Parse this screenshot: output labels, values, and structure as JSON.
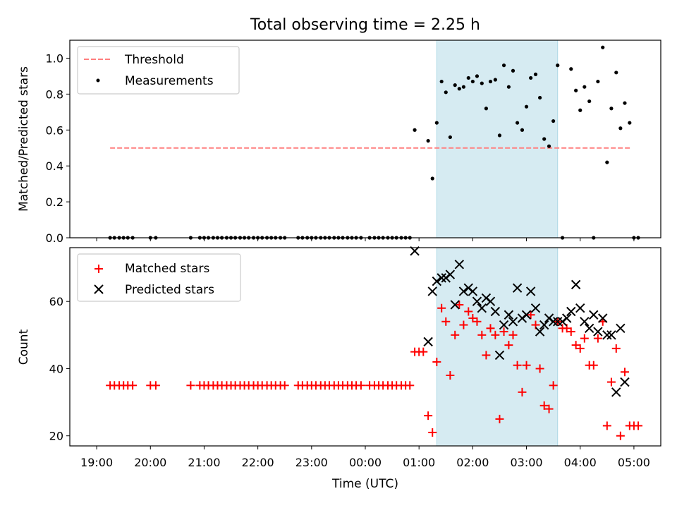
{
  "chart_data": [
    {
      "type": "scatter",
      "title": "Total observing time = 2.25 h",
      "ylabel": "Matched/Predicted stars",
      "xlabel": "",
      "x_unit": "hours since 19:00 UTC",
      "xlim": [
        -0.5,
        10.5
      ],
      "ylim": [
        0,
        1.1
      ],
      "yticks": [
        0.0,
        0.2,
        0.4,
        0.6,
        0.8,
        1.0
      ],
      "ytick_labels": [
        "0.0",
        "0.2",
        "0.4",
        "0.6",
        "0.8",
        "1.0"
      ],
      "legend": {
        "placement": "upper-left",
        "entries": [
          "Threshold",
          "Measurements"
        ]
      },
      "observing_window": [
        6.33,
        8.58
      ],
      "threshold": {
        "name": "Threshold",
        "value": 0.5,
        "x_range": [
          0.25,
          9.96
        ],
        "color": "#ff7f7f"
      },
      "series": [
        {
          "name": "Measurements",
          "color": "#000000",
          "points": [
            [
              0.25,
              0
            ],
            [
              0.33,
              0
            ],
            [
              0.42,
              0
            ],
            [
              0.5,
              0
            ],
            [
              0.58,
              0
            ],
            [
              0.67,
              0
            ],
            [
              1.0,
              0
            ],
            [
              1.1,
              0
            ],
            [
              1.75,
              0
            ],
            [
              1.92,
              0
            ],
            [
              2.0,
              0
            ],
            [
              2.08,
              0
            ],
            [
              2.17,
              0
            ],
            [
              2.25,
              0
            ],
            [
              2.33,
              0
            ],
            [
              2.42,
              0
            ],
            [
              2.5,
              0
            ],
            [
              2.58,
              0
            ],
            [
              2.67,
              0
            ],
            [
              2.75,
              0
            ],
            [
              2.83,
              0
            ],
            [
              2.92,
              0
            ],
            [
              3.0,
              0
            ],
            [
              3.08,
              0
            ],
            [
              3.17,
              0
            ],
            [
              3.25,
              0
            ],
            [
              3.33,
              0
            ],
            [
              3.42,
              0
            ],
            [
              3.5,
              0
            ],
            [
              3.75,
              0
            ],
            [
              3.83,
              0
            ],
            [
              3.92,
              0
            ],
            [
              4.0,
              0
            ],
            [
              4.08,
              0
            ],
            [
              4.17,
              0
            ],
            [
              4.25,
              0
            ],
            [
              4.33,
              0
            ],
            [
              4.42,
              0
            ],
            [
              4.5,
              0
            ],
            [
              4.58,
              0
            ],
            [
              4.67,
              0
            ],
            [
              4.75,
              0
            ],
            [
              4.83,
              0
            ],
            [
              4.92,
              0
            ],
            [
              5.08,
              0
            ],
            [
              5.17,
              0
            ],
            [
              5.25,
              0
            ],
            [
              5.33,
              0
            ],
            [
              5.42,
              0
            ],
            [
              5.5,
              0
            ],
            [
              5.58,
              0
            ],
            [
              5.67,
              0
            ],
            [
              5.75,
              0
            ],
            [
              5.83,
              0
            ],
            [
              5.92,
              0.6
            ],
            [
              6.17,
              0.54
            ],
            [
              6.25,
              0.33
            ],
            [
              6.33,
              0.64
            ],
            [
              6.42,
              0.87
            ],
            [
              6.5,
              0.81
            ],
            [
              6.58,
              0.56
            ],
            [
              6.67,
              0.85
            ],
            [
              6.75,
              0.83
            ],
            [
              6.83,
              0.84
            ],
            [
              6.92,
              0.89
            ],
            [
              7.0,
              0.87
            ],
            [
              7.08,
              0.9
            ],
            [
              7.17,
              0.86
            ],
            [
              7.25,
              0.72
            ],
            [
              7.33,
              0.87
            ],
            [
              7.42,
              0.88
            ],
            [
              7.5,
              0.57
            ],
            [
              7.58,
              0.96
            ],
            [
              7.67,
              0.84
            ],
            [
              7.75,
              0.93
            ],
            [
              7.83,
              0.64
            ],
            [
              7.92,
              0.6
            ],
            [
              8.0,
              0.73
            ],
            [
              8.08,
              0.89
            ],
            [
              8.17,
              0.91
            ],
            [
              8.25,
              0.78
            ],
            [
              8.33,
              0.55
            ],
            [
              8.42,
              0.51
            ],
            [
              8.5,
              0.65
            ],
            [
              8.58,
              0.96
            ],
            [
              8.67,
              0
            ],
            [
              8.83,
              0.94
            ],
            [
              8.92,
              0.82
            ],
            [
              9.0,
              0.71
            ],
            [
              9.08,
              0.84
            ],
            [
              9.17,
              0.76
            ],
            [
              9.25,
              0
            ],
            [
              9.33,
              0.87
            ],
            [
              9.42,
              1.06
            ],
            [
              9.5,
              0.42
            ],
            [
              9.58,
              0.72
            ],
            [
              9.67,
              0.92
            ],
            [
              9.75,
              0.61
            ],
            [
              9.83,
              0.75
            ],
            [
              9.92,
              0.64
            ],
            [
              10.0,
              0
            ],
            [
              10.08,
              0
            ]
          ]
        }
      ]
    },
    {
      "type": "scatter",
      "title": "",
      "ylabel": "Count",
      "xlabel": "Time (UTC)",
      "x_unit": "hours since 19:00 UTC",
      "xlim": [
        -0.5,
        10.5
      ],
      "ylim": [
        17,
        76
      ],
      "xticks": [
        0,
        1,
        2,
        3,
        4,
        5,
        6,
        7,
        8,
        9,
        10
      ],
      "xtick_labels": [
        "19:00",
        "20:00",
        "21:00",
        "22:00",
        "23:00",
        "00:00",
        "01:00",
        "02:00",
        "03:00",
        "04:00",
        "05:00"
      ],
      "yticks": [
        20,
        40,
        60
      ],
      "ytick_labels": [
        "20",
        "40",
        "60"
      ],
      "legend": {
        "placement": "upper-left",
        "entries": [
          "Matched stars",
          "Predicted stars"
        ]
      },
      "observing_window": [
        6.33,
        8.58
      ],
      "series": [
        {
          "name": "Matched stars",
          "marker": "+",
          "color": "#ff0000",
          "points": [
            [
              0.25,
              35
            ],
            [
              0.33,
              35
            ],
            [
              0.42,
              35
            ],
            [
              0.5,
              35
            ],
            [
              0.58,
              35
            ],
            [
              0.67,
              35
            ],
            [
              1.0,
              35
            ],
            [
              1.1,
              35
            ],
            [
              1.75,
              35
            ],
            [
              1.92,
              35
            ],
            [
              2.0,
              35
            ],
            [
              2.08,
              35
            ],
            [
              2.17,
              35
            ],
            [
              2.25,
              35
            ],
            [
              2.33,
              35
            ],
            [
              2.42,
              35
            ],
            [
              2.5,
              35
            ],
            [
              2.58,
              35
            ],
            [
              2.67,
              35
            ],
            [
              2.75,
              35
            ],
            [
              2.83,
              35
            ],
            [
              2.92,
              35
            ],
            [
              3.0,
              35
            ],
            [
              3.08,
              35
            ],
            [
              3.17,
              35
            ],
            [
              3.25,
              35
            ],
            [
              3.33,
              35
            ],
            [
              3.42,
              35
            ],
            [
              3.5,
              35
            ],
            [
              3.75,
              35
            ],
            [
              3.83,
              35
            ],
            [
              3.92,
              35
            ],
            [
              4.0,
              35
            ],
            [
              4.08,
              35
            ],
            [
              4.17,
              35
            ],
            [
              4.25,
              35
            ],
            [
              4.33,
              35
            ],
            [
              4.42,
              35
            ],
            [
              4.5,
              35
            ],
            [
              4.58,
              35
            ],
            [
              4.67,
              35
            ],
            [
              4.75,
              35
            ],
            [
              4.83,
              35
            ],
            [
              4.92,
              35
            ],
            [
              5.08,
              35
            ],
            [
              5.17,
              35
            ],
            [
              5.25,
              35
            ],
            [
              5.33,
              35
            ],
            [
              5.42,
              35
            ],
            [
              5.5,
              35
            ],
            [
              5.58,
              35
            ],
            [
              5.67,
              35
            ],
            [
              5.75,
              35
            ],
            [
              5.83,
              35
            ],
            [
              5.92,
              45
            ],
            [
              6.0,
              45
            ],
            [
              6.08,
              45
            ],
            [
              6.17,
              26
            ],
            [
              6.25,
              21
            ],
            [
              6.33,
              42
            ],
            [
              6.42,
              58
            ],
            [
              6.5,
              54
            ],
            [
              6.58,
              38
            ],
            [
              6.67,
              50
            ],
            [
              6.75,
              59
            ],
            [
              6.83,
              53
            ],
            [
              6.92,
              57
            ],
            [
              7.0,
              55
            ],
            [
              7.08,
              54
            ],
            [
              7.17,
              50
            ],
            [
              7.25,
              44
            ],
            [
              7.33,
              52
            ],
            [
              7.42,
              50
            ],
            [
              7.5,
              25
            ],
            [
              7.58,
              51
            ],
            [
              7.67,
              47
            ],
            [
              7.75,
              50
            ],
            [
              7.83,
              41
            ],
            [
              7.92,
              33
            ],
            [
              8.0,
              41
            ],
            [
              8.08,
              56
            ],
            [
              8.17,
              53
            ],
            [
              8.25,
              40
            ],
            [
              8.33,
              29
            ],
            [
              8.42,
              28
            ],
            [
              8.5,
              35
            ],
            [
              8.58,
              54
            ],
            [
              8.67,
              52
            ],
            [
              8.75,
              52
            ],
            [
              8.83,
              51
            ],
            [
              8.92,
              47
            ],
            [
              9.0,
              46
            ],
            [
              9.08,
              49
            ],
            [
              9.17,
              41
            ],
            [
              9.25,
              41
            ],
            [
              9.33,
              49
            ],
            [
              9.42,
              54
            ],
            [
              9.5,
              23
            ],
            [
              9.58,
              36
            ],
            [
              9.67,
              46
            ],
            [
              9.75,
              20
            ],
            [
              9.83,
              39
            ],
            [
              9.92,
              23
            ],
            [
              10.0,
              23
            ],
            [
              10.08,
              23
            ]
          ]
        },
        {
          "name": "Predicted stars",
          "marker": "x",
          "color": "#000000",
          "points": [
            [
              5.92,
              75
            ],
            [
              6.17,
              48
            ],
            [
              6.25,
              63
            ],
            [
              6.33,
              66
            ],
            [
              6.42,
              67
            ],
            [
              6.5,
              67
            ],
            [
              6.58,
              68
            ],
            [
              6.67,
              59
            ],
            [
              6.75,
              71
            ],
            [
              6.83,
              63
            ],
            [
              6.92,
              64
            ],
            [
              7.0,
              63
            ],
            [
              7.08,
              60
            ],
            [
              7.17,
              58
            ],
            [
              7.25,
              61
            ],
            [
              7.33,
              60
            ],
            [
              7.42,
              57
            ],
            [
              7.5,
              44
            ],
            [
              7.58,
              53
            ],
            [
              7.67,
              56
            ],
            [
              7.75,
              54
            ],
            [
              7.83,
              64
            ],
            [
              7.92,
              55
            ],
            [
              8.0,
              56
            ],
            [
              8.08,
              63
            ],
            [
              8.17,
              58
            ],
            [
              8.25,
              51
            ],
            [
              8.33,
              53
            ],
            [
              8.42,
              55
            ],
            [
              8.5,
              54
            ],
            [
              8.58,
              54
            ],
            [
              8.67,
              54
            ],
            [
              8.75,
              55
            ],
            [
              8.83,
              57
            ],
            [
              8.92,
              65
            ],
            [
              9.0,
              58
            ],
            [
              9.08,
              54
            ],
            [
              9.17,
              52
            ],
            [
              9.25,
              56
            ],
            [
              9.33,
              51
            ],
            [
              9.42,
              55
            ],
            [
              9.5,
              50
            ],
            [
              9.58,
              50
            ],
            [
              9.67,
              33
            ],
            [
              9.75,
              52
            ],
            [
              9.83,
              36
            ]
          ]
        }
      ]
    }
  ]
}
